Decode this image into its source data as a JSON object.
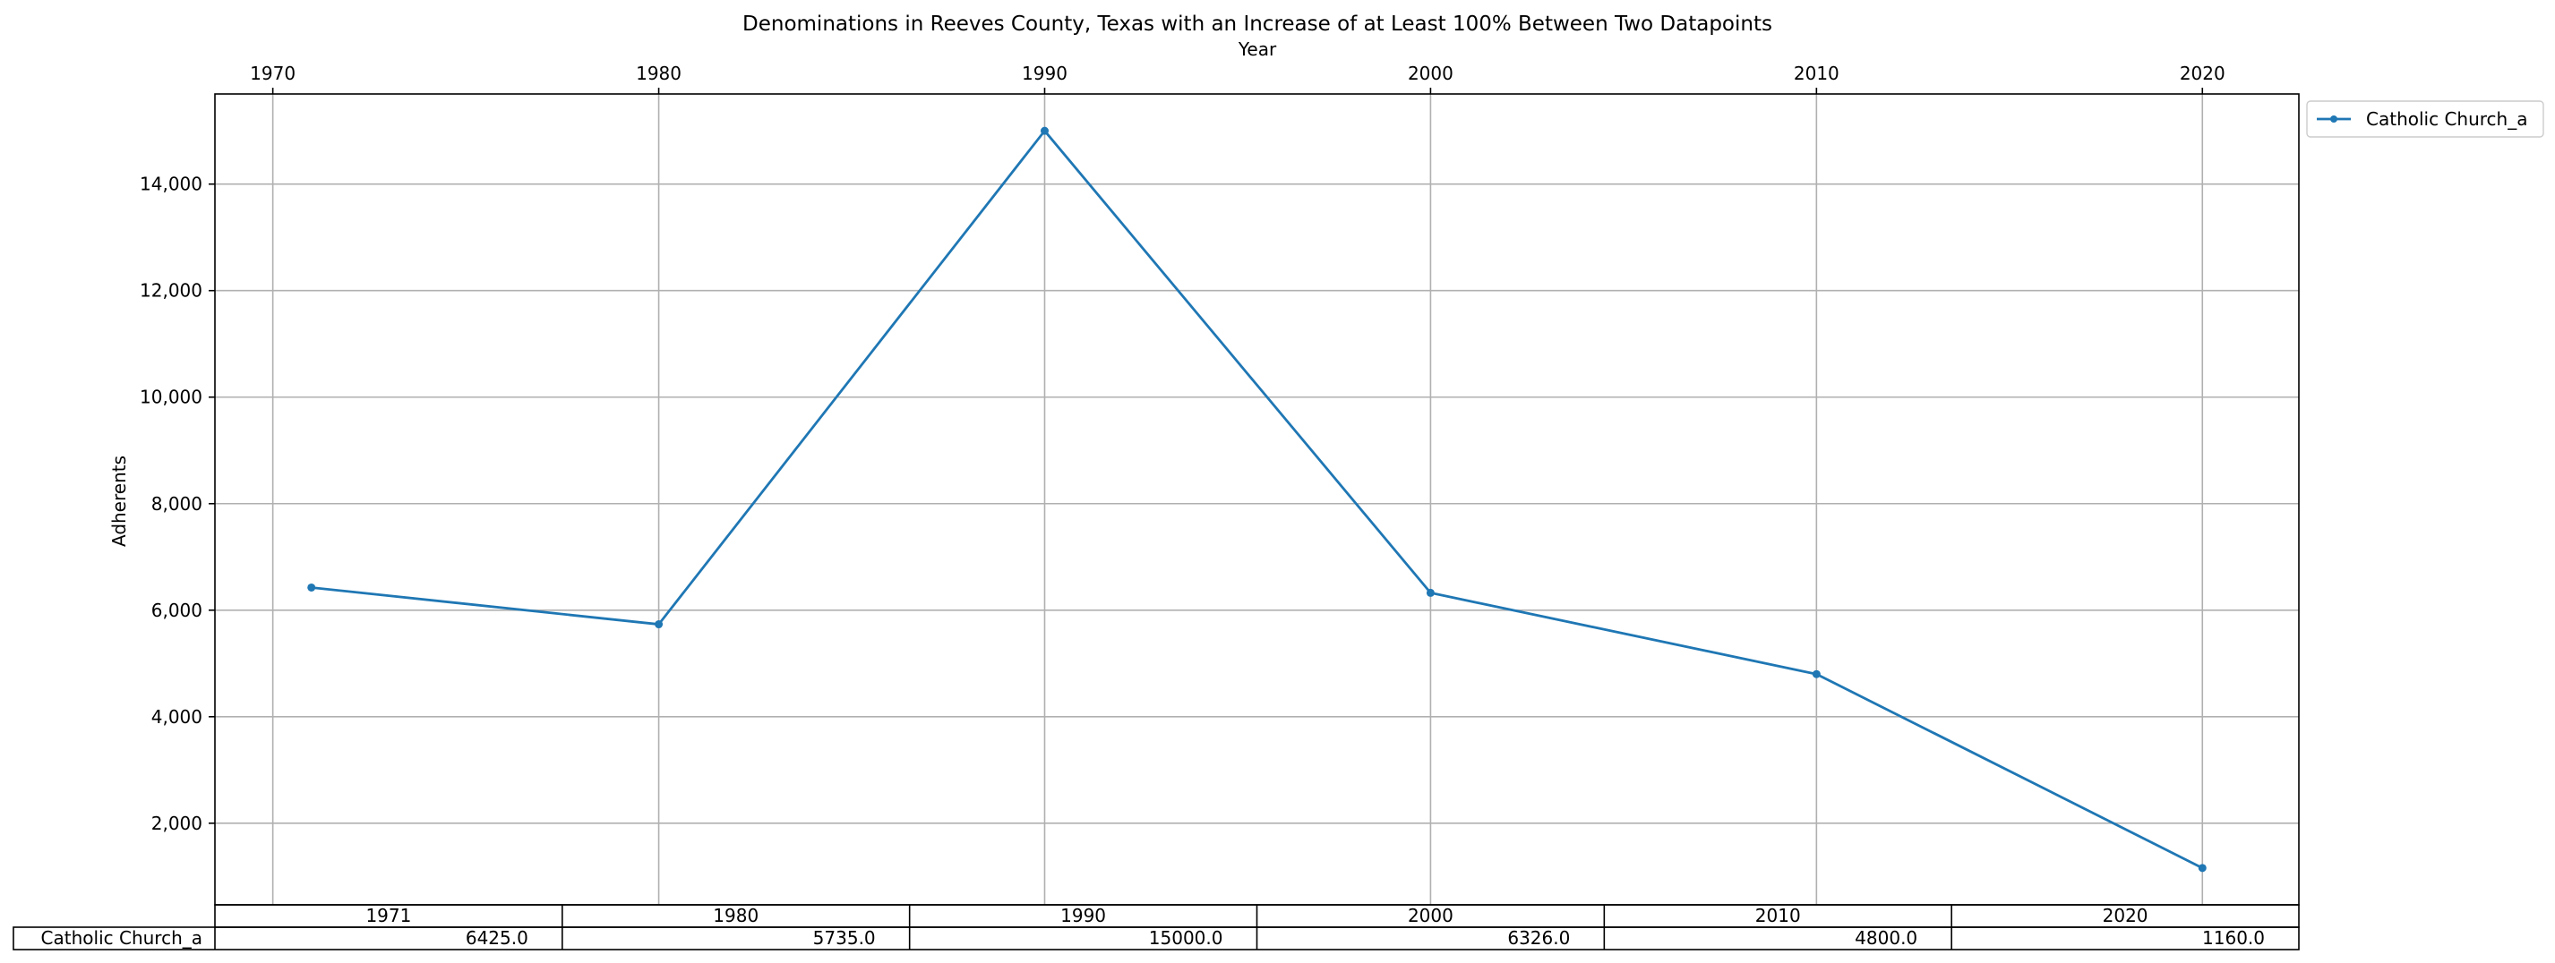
{
  "chart_data": {
    "type": "line",
    "title": "Denominations in Reeves County, Texas with an Increase of at Least 100% Between Two Datapoints",
    "xlabel": "Year",
    "ylabel": "Adherents",
    "x": [
      1971,
      1980,
      1990,
      2000,
      2010,
      2020
    ],
    "x_ticks": [
      1970,
      1980,
      1990,
      2000,
      2010,
      2020
    ],
    "x_tick_labels": [
      "1970",
      "1980",
      "1990",
      "2000",
      "2010",
      "2020"
    ],
    "x_axis_position": "top",
    "xlim": [
      1968.5,
      2022.5
    ],
    "y_ticks": [
      2000,
      4000,
      6000,
      8000,
      10000,
      12000,
      14000
    ],
    "y_tick_labels": [
      "2,000",
      "4,000",
      "6,000",
      "8,000",
      "10,000",
      "12,000",
      "14,000"
    ],
    "ylim": [
      468,
      15692
    ],
    "grid": true,
    "legend_position": "outside-top-right",
    "series": [
      {
        "name": "Catholic Church_a",
        "color": "#1f77b4",
        "marker": "dot",
        "values": [
          6425,
          5735,
          15000,
          6326,
          4800,
          1160
        ]
      }
    ],
    "table": {
      "columns": [
        "1971",
        "1980",
        "1990",
        "2000",
        "2010",
        "2020"
      ],
      "rows": [
        {
          "label": "Catholic Church_a",
          "cells": [
            "6425.0",
            "5735.0",
            "15000.0",
            "6326.0",
            "4800.0",
            "1160.0"
          ]
        }
      ]
    }
  }
}
